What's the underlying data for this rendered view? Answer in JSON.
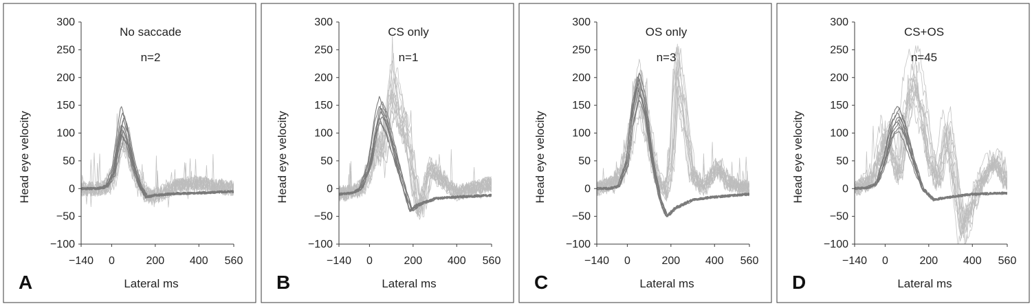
{
  "chart_data": [
    {
      "type": "line",
      "panel_letter": "A",
      "title": "No saccade",
      "subtitle": "n=2",
      "xlabel": "Lateral ms",
      "ylabel": "Head eye velocity",
      "xlim": [
        -140,
        560
      ],
      "ylim": [
        -100,
        300
      ],
      "xticks": [
        -140,
        0,
        200,
        400,
        560
      ],
      "yticks": [
        -100,
        -50,
        0,
        50,
        100,
        150,
        200,
        250,
        300
      ],
      "colors": {
        "head": "#7a7a7a",
        "eye": "#bdbdbd"
      },
      "series": [
        {
          "role": "head",
          "peak_values": [
            150,
            140,
            130,
            125,
            118,
            110,
            104,
            98,
            92
          ],
          "x": [
            -140,
            -60,
            -20,
            10,
            30,
            50,
            70,
            100,
            130,
            160,
            200,
            300,
            400,
            560
          ],
          "y": [
            0,
            0,
            5,
            30,
            80,
            120,
            100,
            45,
            5,
            -15,
            -12,
            -9,
            -8,
            -5
          ]
        },
        {
          "role": "eye",
          "x": [
            -140,
            -60,
            -20,
            10,
            30,
            50,
            70,
            100,
            130,
            160,
            200,
            300,
            400,
            560
          ],
          "y": [
            0,
            0,
            4,
            25,
            70,
            100,
            85,
            40,
            10,
            -10,
            -15,
            5,
            10,
            0
          ]
        }
      ]
    },
    {
      "type": "line",
      "panel_letter": "B",
      "title": "CS only",
      "subtitle": "n=1",
      "xlabel": "Lateral ms",
      "ylabel": "Head eye velocity",
      "xlim": [
        -140,
        560
      ],
      "ylim": [
        -100,
        300
      ],
      "xticks": [
        -140,
        0,
        200,
        400,
        560
      ],
      "yticks": [
        -100,
        -50,
        0,
        50,
        100,
        150,
        200,
        250,
        300
      ],
      "colors": {
        "head": "#7a7a7a",
        "eye": "#bdbdbd"
      },
      "series": [
        {
          "role": "head",
          "peak_values": [
            165,
            158,
            150,
            145,
            140,
            132,
            126,
            120
          ],
          "x": [
            -140,
            -80,
            -40,
            0,
            30,
            50,
            80,
            120,
            160,
            190,
            220,
            300,
            400,
            560
          ],
          "y": [
            -10,
            -8,
            0,
            40,
            110,
            140,
            115,
            55,
            0,
            -40,
            -30,
            -18,
            -15,
            -12
          ]
        },
        {
          "role": "eye",
          "x": [
            -140,
            -60,
            -20,
            10,
            40,
            60,
            90,
            110,
            140,
            170,
            200,
            230,
            280,
            400,
            560
          ],
          "y": [
            -10,
            -5,
            10,
            50,
            100,
            60,
            150,
            210,
            140,
            110,
            30,
            -50,
            40,
            -10,
            10
          ]
        }
      ]
    },
    {
      "type": "line",
      "panel_letter": "C",
      "title": "OS only",
      "subtitle": "n=3",
      "xlabel": "Lateral ms",
      "ylabel": "Head eye velocity",
      "xlim": [
        -140,
        560
      ],
      "ylim": [
        -100,
        300
      ],
      "xticks": [
        -140,
        0,
        200,
        400,
        560
      ],
      "yticks": [
        -100,
        -50,
        0,
        50,
        100,
        150,
        200,
        250,
        300
      ],
      "colors": {
        "head": "#7a7a7a",
        "eye": "#bdbdbd"
      },
      "series": [
        {
          "role": "head",
          "peak_values": [
            210,
            205,
            198,
            192,
            185,
            178,
            170,
            162
          ],
          "x": [
            -140,
            -80,
            -40,
            0,
            20,
            50,
            80,
            110,
            150,
            180,
            220,
            300,
            400,
            560
          ],
          "y": [
            0,
            0,
            5,
            50,
            130,
            190,
            150,
            60,
            -20,
            -50,
            -35,
            -20,
            -15,
            -10
          ]
        },
        {
          "role": "eye",
          "x": [
            -140,
            -60,
            -20,
            10,
            40,
            60,
            90,
            140,
            180,
            210,
            230,
            260,
            300,
            350,
            420,
            470,
            560
          ],
          "y": [
            0,
            10,
            30,
            80,
            160,
            190,
            120,
            20,
            -10,
            60,
            230,
            150,
            30,
            0,
            40,
            10,
            0
          ]
        }
      ]
    },
    {
      "type": "line",
      "panel_letter": "D",
      "title": "CS+OS",
      "subtitle": "n=45",
      "xlabel": "Lateral ms",
      "ylabel": "Head eye velocity",
      "xlim": [
        -140,
        560
      ],
      "ylim": [
        -100,
        300
      ],
      "xticks": [
        -140,
        0,
        200,
        400,
        560
      ],
      "yticks": [
        -100,
        -50,
        0,
        50,
        100,
        150,
        200,
        250,
        300
      ],
      "colors": {
        "head": "#7a7a7a",
        "eye": "#bdbdbd"
      },
      "series": [
        {
          "role": "head",
          "peak_values": [
            150,
            144,
            138,
            132,
            125,
            118,
            112,
            105
          ],
          "x": [
            -140,
            -80,
            -40,
            0,
            30,
            60,
            90,
            130,
            170,
            220,
            300,
            400,
            560
          ],
          "y": [
            0,
            2,
            10,
            60,
            120,
            140,
            110,
            50,
            0,
            -20,
            -15,
            -10,
            -8
          ]
        },
        {
          "role": "eye",
          "x": [
            -140,
            -70,
            -30,
            0,
            30,
            60,
            90,
            120,
            140,
            170,
            200,
            240,
            280,
            310,
            350,
            420,
            500,
            560
          ],
          "y": [
            0,
            15,
            60,
            110,
            70,
            20,
            150,
            220,
            210,
            150,
            60,
            10,
            130,
            40,
            -90,
            0,
            60,
            10
          ]
        }
      ]
    }
  ]
}
